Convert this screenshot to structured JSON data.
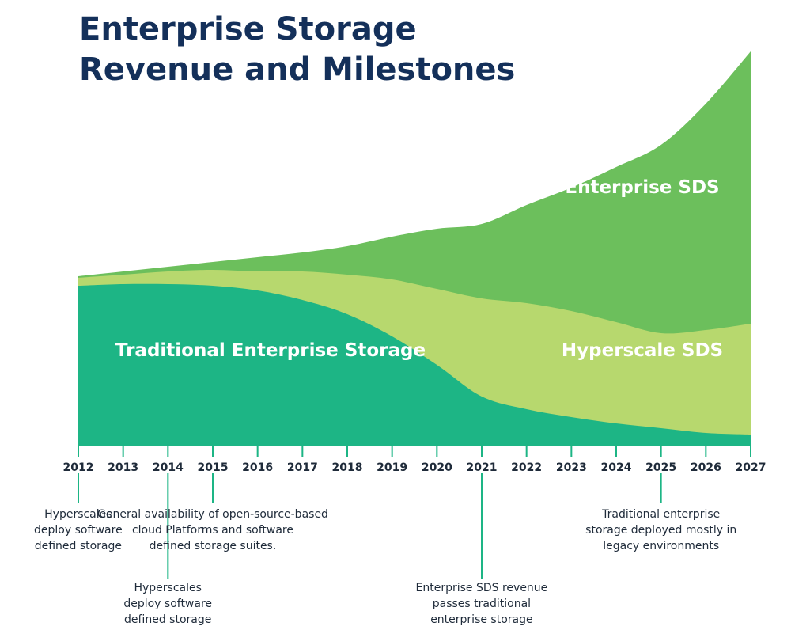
{
  "title_lines": [
    "Enterprise Storage",
    "Revenue and Milestones"
  ],
  "colors": {
    "title": "#14305a",
    "traditional": "#1db585",
    "hyperscale": "#b7d86e",
    "enterprise_sds": "#6cbf5c",
    "axis": "#1db585",
    "text": "#1f2b3a"
  },
  "chart_data": {
    "type": "area",
    "stacked": true,
    "x": [
      2012,
      2013,
      2014,
      2015,
      2016,
      2017,
      2018,
      2019,
      2020,
      2021,
      2022,
      2023,
      2024,
      2025,
      2026,
      2027
    ],
    "series": [
      {
        "name": "Traditional Enterprise Storage",
        "values": [
          100,
          101,
          101,
          100,
          97,
          91,
          82,
          68,
          50,
          30,
          22,
          17,
          13,
          10,
          7,
          6
        ]
      },
      {
        "name": "Hyperscale SDS",
        "values": [
          5,
          6,
          8,
          10,
          12,
          18,
          25,
          36,
          48,
          62,
          67,
          67,
          64,
          60,
          65,
          70
        ]
      },
      {
        "name": "Enterprise SDS",
        "values": [
          1,
          2,
          3,
          5,
          9,
          12,
          18,
          27,
          38,
          47,
          62,
          78,
          98,
          119,
          143,
          172
        ]
      }
    ],
    "x_tick_labels": [
      "2012",
      "2013",
      "2014",
      "2015",
      "2016",
      "2017",
      "2018",
      "2019",
      "2020",
      "2021",
      "2022",
      "2023",
      "2024",
      "2025",
      "2026",
      "2027"
    ],
    "xlabel": "",
    "ylabel": "",
    "ylim": [
      0,
      250
    ],
    "grid": false,
    "legend": "inline labels"
  },
  "annotations": [
    {
      "id": "hyperscale-2012",
      "year": 2012,
      "tier": "upper",
      "lines": [
        "Hyperscales",
        "deploy software",
        "defined storage"
      ]
    },
    {
      "id": "hyperscale-2014",
      "year": 2014,
      "tier": "lower",
      "lines": [
        "Hyperscales",
        "deploy software",
        "defined storage"
      ]
    },
    {
      "id": "open-source-2015",
      "year": 2015,
      "tier": "upper",
      "lines": [
        "General availability of open-source-based",
        "cloud Platforms and software",
        "defined storage suites."
      ]
    },
    {
      "id": "sds-passes-2021",
      "year": 2021,
      "tier": "lower",
      "lines": [
        "Enterprise SDS revenue",
        "passes traditional",
        "enterprise storage"
      ]
    },
    {
      "id": "legacy-2025",
      "year": 2025,
      "tier": "upper",
      "lines": [
        "Traditional enterprise",
        "storage deployed mostly in",
        "legacy environments"
      ]
    }
  ]
}
